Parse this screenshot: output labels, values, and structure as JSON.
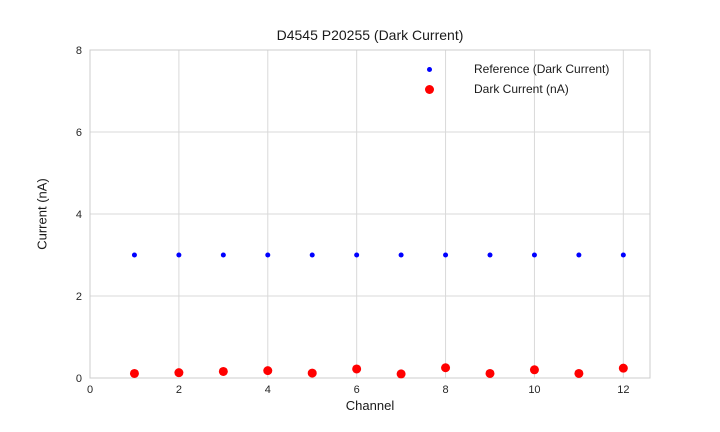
{
  "chart_data": {
    "type": "scatter",
    "title": "D4545 P20255 (Dark Current)",
    "xlabel": "Channel",
    "ylabel": "Current (nA)",
    "xlim": [
      0,
      12.6
    ],
    "ylim": [
      0,
      8
    ],
    "xticks": [
      0,
      2,
      4,
      6,
      8,
      10,
      12
    ],
    "yticks": [
      0,
      2,
      4,
      6,
      8
    ],
    "grid": true,
    "legend_position": "upper right",
    "x": [
      1,
      2,
      3,
      4,
      5,
      6,
      7,
      8,
      9,
      10,
      11,
      12
    ],
    "series": [
      {
        "name": "Reference (Dark Current)",
        "color": "#0000ff",
        "marker_diameter": 5,
        "values": [
          3.0,
          3.0,
          3.0,
          3.0,
          3.0,
          3.0,
          3.0,
          3.0,
          3.0,
          3.0,
          3.0,
          3.0
        ]
      },
      {
        "name": "Dark Current (nA)",
        "color": "#ff0000",
        "marker_diameter": 9,
        "values": [
          0.11,
          0.13,
          0.16,
          0.18,
          0.12,
          0.22,
          0.1,
          0.25,
          0.11,
          0.2,
          0.11,
          0.24
        ]
      }
    ],
    "colors": {
      "grid": "#d9d9d9",
      "spine": "#cccccc",
      "tick_text": "#262626",
      "background": "#ffffff"
    }
  }
}
